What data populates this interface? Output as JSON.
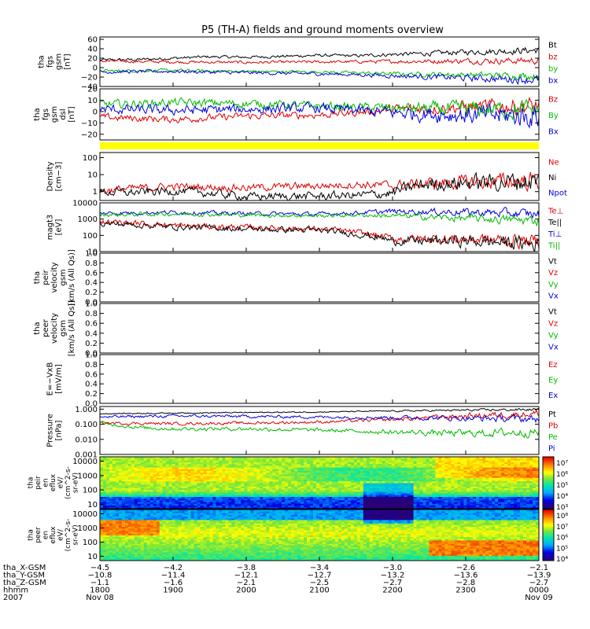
{
  "chart_data": {
    "type": "line",
    "title": "P5 (TH-A) fields and ground moments overview",
    "panels": [
      {
        "id": "fgs_gsm",
        "ylabel": [
          "tha",
          "fgs",
          "gsm",
          "[nT]"
        ],
        "ylim": [
          -40,
          65
        ],
        "yscale": "linear",
        "yticks": [
          -40,
          -20,
          0,
          20,
          40,
          60
        ],
        "ytick_labels": [
          "−40",
          "−20",
          "0",
          "20",
          "40",
          "60"
        ],
        "legend": [
          "Bt",
          "bz",
          "by",
          "bx"
        ],
        "series": [
          {
            "name": "Bt",
            "color": "#000000",
            "knots": [
              [
                1800,
                16
              ],
              [
                1830,
                17
              ],
              [
                1900,
                20
              ],
              [
                1930,
                23
              ],
              [
                2000,
                22
              ],
              [
                2030,
                24
              ],
              [
                2100,
                26
              ],
              [
                2130,
                25
              ],
              [
                2200,
                28
              ],
              [
                2230,
                30
              ],
              [
                2300,
                33
              ],
              [
                2330,
                35
              ],
              [
                2400,
                37
              ]
            ],
            "noise": 2.5
          },
          {
            "name": "bz",
            "color": "#dd0000",
            "knots": [
              [
                1800,
                14
              ],
              [
                1900,
                12
              ],
              [
                2000,
                11
              ],
              [
                2100,
                12
              ],
              [
                2200,
                13
              ],
              [
                2300,
                14
              ],
              [
                2400,
                15
              ]
            ],
            "noise": 2.5
          },
          {
            "name": "by",
            "color": "#00bb00",
            "knots": [
              [
                1800,
                -7
              ],
              [
                1900,
                -6
              ],
              [
                2000,
                -8
              ],
              [
                2100,
                -9
              ],
              [
                2200,
                -13
              ],
              [
                2300,
                -15
              ],
              [
                2400,
                -18
              ]
            ],
            "noise": 2.5
          },
          {
            "name": "bx",
            "color": "#0000dd",
            "knots": [
              [
                1800,
                -9
              ],
              [
                1900,
                -8
              ],
              [
                2000,
                -11
              ],
              [
                2100,
                -13
              ],
              [
                2200,
                -17
              ],
              [
                2300,
                -22
              ],
              [
                2400,
                -26
              ]
            ],
            "noise": 3
          }
        ]
      },
      {
        "id": "fgs_gse",
        "ylabel": [
          "tha",
          "fgs",
          "gsm",
          "dsl",
          "[nT]"
        ],
        "ylim": [
          -25,
          20
        ],
        "yscale": "linear",
        "yticks": [
          -20,
          -10,
          0,
          10,
          20
        ],
        "ytick_labels": [
          "−20",
          "−10",
          "0",
          "10",
          "20"
        ],
        "legend": [
          "Bz",
          "By",
          "Bx"
        ],
        "series": [
          {
            "name": "Bz",
            "color": "#dd0000",
            "knots": [
              [
                1800,
                -5
              ],
              [
                1900,
                -7
              ],
              [
                2000,
                -4
              ],
              [
                2100,
                -3
              ],
              [
                2130,
                -1
              ],
              [
                2200,
                2
              ],
              [
                2300,
                4
              ],
              [
                2400,
                5
              ]
            ],
            "noise": 2.5
          },
          {
            "name": "By",
            "color": "#00bb00",
            "knots": [
              [
                1800,
                6
              ],
              [
                1900,
                8
              ],
              [
                2000,
                7
              ],
              [
                2100,
                5
              ],
              [
                2200,
                3
              ],
              [
                2300,
                2
              ],
              [
                2400,
                1
              ]
            ],
            "noise": 3
          },
          {
            "name": "Bx",
            "color": "#0000dd",
            "knots": [
              [
                1800,
                2
              ],
              [
                1900,
                1
              ],
              [
                2000,
                2
              ],
              [
                2100,
                3
              ],
              [
                2200,
                -1
              ],
              [
                2300,
                -3
              ],
              [
                2400,
                -4
              ]
            ],
            "noise": 3.5
          }
        ]
      },
      {
        "id": "density",
        "ylabel": [
          "Density",
          "[cm−3]"
        ],
        "ylim": [
          0.3,
          200
        ],
        "yscale": "log",
        "yticks": [
          1,
          10,
          100
        ],
        "ytick_labels": [
          "1",
          "10",
          "100"
        ],
        "legend": [
          "Ne",
          "Ni",
          "Npot"
        ],
        "series": [
          {
            "name": "Ne",
            "color": "#dd0000",
            "knots": [
              [
                1800,
                1.1
              ],
              [
                1830,
                1.6
              ],
              [
                1900,
                2.0
              ],
              [
                2000,
                1.7
              ],
              [
                2100,
                2.2
              ],
              [
                2130,
                2.6
              ],
              [
                2200,
                2.2
              ],
              [
                2230,
                3.0
              ],
              [
                2300,
                3.5
              ],
              [
                2400,
                4.5
              ]
            ],
            "noise": 0.18
          },
          {
            "name": "Ni",
            "color": "#000000",
            "knots": [
              [
                1800,
                0.9
              ],
              [
                1830,
                0.9
              ],
              [
                1900,
                1.1
              ],
              [
                1930,
                0.8
              ],
              [
                2000,
                0.5
              ],
              [
                2100,
                0.55
              ],
              [
                2130,
                0.6
              ],
              [
                2200,
                0.8
              ],
              [
                2230,
                2.8
              ],
              [
                2300,
                3.3
              ],
              [
                2400,
                4.2
              ]
            ],
            "noise": 0.2
          }
        ]
      },
      {
        "id": "temperature",
        "ylabel": [
          "magt3",
          "[eV]"
        ],
        "ylim": [
          10,
          10000
        ],
        "yscale": "log",
        "yticks": [
          10,
          100,
          1000,
          10000
        ],
        "ytick_labels": [
          "10",
          "100",
          "1000",
          "10000"
        ],
        "legend": [
          "Te⊥",
          "Te||",
          "Ti⊥",
          "Ti||"
        ],
        "series": [
          {
            "name": "Ti⊥",
            "color": "#0000dd",
            "knots": [
              [
                1800,
                2300
              ],
              [
                1900,
                2600
              ],
              [
                2000,
                2200
              ],
              [
                2100,
                2000
              ],
              [
                2130,
                2400
              ],
              [
                2200,
                3000
              ],
              [
                2300,
                2700
              ],
              [
                2400,
                2000
              ]
            ],
            "noise": 0.1
          },
          {
            "name": "Ti||",
            "color": "#00bb00",
            "knots": [
              [
                1800,
                1800
              ],
              [
                1900,
                2100
              ],
              [
                2000,
                1800
              ],
              [
                2100,
                1600
              ],
              [
                2130,
                1800
              ],
              [
                2200,
                1600
              ],
              [
                2300,
                1100
              ],
              [
                2400,
                800
              ]
            ],
            "noise": 0.1
          },
          {
            "name": "Te⊥",
            "color": "#dd0000",
            "knots": [
              [
                1800,
                700
              ],
              [
                1900,
                400
              ],
              [
                2000,
                300
              ],
              [
                2100,
                250
              ],
              [
                2130,
                150
              ],
              [
                2200,
                60
              ],
              [
                2300,
                60
              ],
              [
                2400,
                40
              ]
            ],
            "noise": 0.15
          },
          {
            "name": "Te||",
            "color": "#000000",
            "knots": [
              [
                1800,
                550
              ],
              [
                1900,
                330
              ],
              [
                2000,
                250
              ],
              [
                2100,
                200
              ],
              [
                2130,
                120
              ],
              [
                2200,
                45
              ],
              [
                2300,
                45
              ],
              [
                2400,
                30
              ]
            ],
            "noise": 0.15
          }
        ]
      },
      {
        "id": "peir_velocity",
        "ylabel": [
          "tha",
          "peir",
          "velocity",
          "gsm",
          "[km/s (All Qs)]"
        ],
        "ylim": [
          0,
          1
        ],
        "yscale": "linear",
        "yticks": [
          0,
          0.2,
          0.4,
          0.6,
          0.8,
          1.0
        ],
        "ytick_labels": [
          "0.0",
          "0.2",
          "0.4",
          "0.6",
          "0.8",
          "1.0"
        ],
        "legend": [
          "Vt",
          "Vz",
          "Vy",
          "Vx"
        ],
        "series": []
      },
      {
        "id": "peer_velocity",
        "ylabel": [
          "tha",
          "peer",
          "velocity",
          "gsm",
          "[km/s (All Qs)]"
        ],
        "ylim": [
          0,
          1
        ],
        "yscale": "linear",
        "yticks": [
          0,
          0.2,
          0.4,
          0.6,
          0.8,
          1.0
        ],
        "ytick_labels": [
          "0.0",
          "0.2",
          "0.4",
          "0.6",
          "0.8",
          "1.0"
        ],
        "legend": [
          "Vt",
          "Vz",
          "Vy",
          "Vx"
        ],
        "series": []
      },
      {
        "id": "efield",
        "ylabel": [
          "E=−VxB",
          "[mV/m]"
        ],
        "ylim": [
          0,
          1
        ],
        "yscale": "linear",
        "yticks": [
          0,
          0.2,
          0.4,
          0.6,
          0.8,
          1.0
        ],
        "ytick_labels": [
          "0.0",
          "0.2",
          "0.4",
          "0.6",
          "0.8",
          "1.0"
        ],
        "legend": [
          "Ez",
          "Ey",
          "Ex"
        ],
        "series": []
      },
      {
        "id": "pressure",
        "ylabel": [
          "Pressure",
          "[nPa]"
        ],
        "ylim": [
          0.001,
          1.5
        ],
        "yscale": "log",
        "yticks": [
          0.001,
          0.01,
          0.1,
          1
        ],
        "ytick_labels": [
          "0.001",
          "0.010",
          "0.100",
          "1.000"
        ],
        "legend": [
          "Pt",
          "Pb",
          "Pe",
          "Pi"
        ],
        "series": [
          {
            "name": "Pt",
            "color": "#000000",
            "knots": [
              [
                1800,
                0.5
              ],
              [
                1900,
                0.55
              ],
              [
                2000,
                0.6
              ],
              [
                2100,
                0.65
              ],
              [
                2200,
                0.75
              ],
              [
                2300,
                0.85
              ],
              [
                2400,
                0.95
              ]
            ],
            "noise": 0.03
          },
          {
            "name": "Pb",
            "color": "#dd0000",
            "knots": [
              [
                1800,
                0.12
              ],
              [
                1900,
                0.11
              ],
              [
                2000,
                0.12
              ],
              [
                2100,
                0.14
              ],
              [
                2200,
                0.2
              ],
              [
                2300,
                0.35
              ],
              [
                2400,
                0.5
              ]
            ],
            "noise": 0.08
          },
          {
            "name": "Pi",
            "color": "#0000dd",
            "knots": [
              [
                1800,
                0.3
              ],
              [
                1900,
                0.35
              ],
              [
                2000,
                0.33
              ],
              [
                2100,
                0.3
              ],
              [
                2200,
                0.28
              ],
              [
                2300,
                0.25
              ],
              [
                2400,
                0.22
              ]
            ],
            "noise": 0.08
          },
          {
            "name": "Pe",
            "color": "#00bb00",
            "knots": [
              [
                1800,
                0.12
              ],
              [
                1830,
                0.06
              ],
              [
                1900,
                0.05
              ],
              [
                2000,
                0.05
              ],
              [
                2100,
                0.04
              ],
              [
                2200,
                0.03
              ],
              [
                2300,
                0.025
              ],
              [
                2400,
                0.03
              ]
            ],
            "noise": 0.1
          }
        ]
      }
    ],
    "spectrograms": [
      {
        "id": "peir_en_eflux",
        "ylabel": [
          "tha",
          "peir",
          "en",
          "eflux",
          "eV/",
          "(cm^2-s-",
          "sr-eV)"
        ],
        "ylim": [
          5,
          20000
        ],
        "yscale": "log",
        "yticks": [
          10,
          100,
          1000,
          10000
        ],
        "ytick_labels": [
          "10",
          "100",
          "1000",
          "10000"
        ],
        "colorbar_labels": [
          "10⁷",
          "10⁶",
          "10⁵",
          "10⁴",
          "10³"
        ]
      },
      {
        "id": "peer_en_eflux",
        "ylabel": [
          "tha",
          "peer",
          "en",
          "eflux",
          "eV/",
          "(cm^2-s-",
          "sr-eV)"
        ],
        "ylim": [
          5,
          20000
        ],
        "yscale": "log",
        "yticks": [
          10,
          100,
          1000,
          10000
        ],
        "ytick_labels": [
          "10",
          "100",
          "1000",
          "10000"
        ],
        "colorbar_labels": [
          "10⁸",
          "10⁷",
          "10⁶",
          "10⁵",
          "10⁴"
        ]
      }
    ],
    "x_axis": {
      "range_hhmm": [
        1800,
        2400
      ],
      "tick_positions_hours": [
        0,
        1,
        2,
        3,
        4,
        5,
        6
      ],
      "rows": [
        {
          "label": "tha_X-GSM",
          "values": [
            "−4.5",
            "−4.2",
            "−3.8",
            "−3.4",
            "−3.0",
            "−2.6",
            "−2.1"
          ]
        },
        {
          "label": "tha_Y-GSM",
          "values": [
            "−10.8",
            "−11.4",
            "−12.1",
            "−12.7",
            "−13.2",
            "−13.6",
            "−13.9"
          ]
        },
        {
          "label": "tha_Z-GSM",
          "values": [
            "−1.1",
            "−1.6",
            "−2.1",
            "−2.5",
            "−2.7",
            "−2.8",
            "−2.7"
          ]
        },
        {
          "label": "hhmm",
          "values": [
            "1800",
            "1900",
            "2000",
            "2100",
            "2200",
            "2300",
            "0000"
          ]
        },
        {
          "label": "2007",
          "values": [
            "Nov 08",
            "",
            "",
            "",
            "",
            "",
            "Nov 09"
          ]
        }
      ]
    }
  }
}
